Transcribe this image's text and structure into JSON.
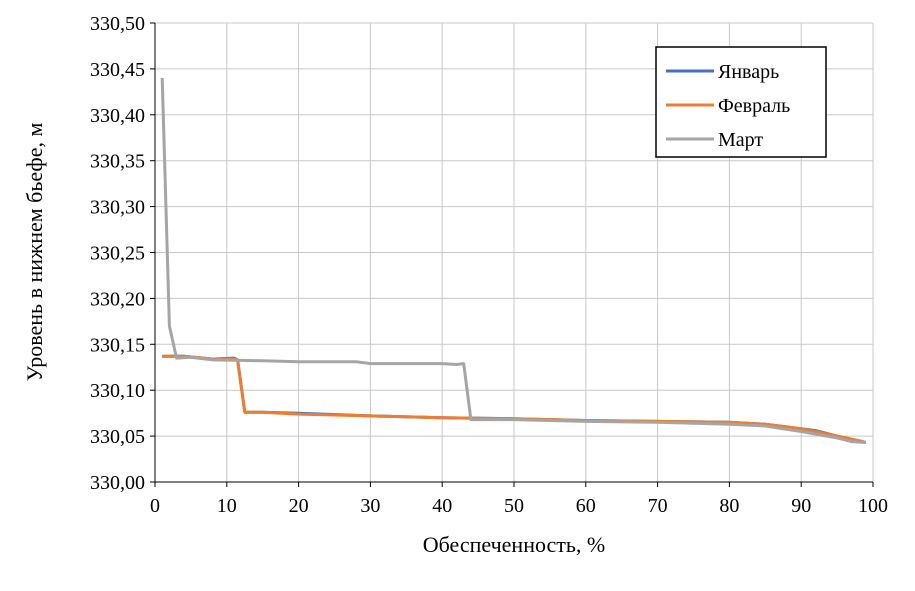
{
  "chart_data": {
    "type": "line",
    "x_label": "Обеспеченность, %",
    "y_label": "Уровень в нижнем бьефе, м",
    "xlim": [
      0,
      100
    ],
    "xticks": [
      0,
      10,
      20,
      30,
      40,
      50,
      60,
      70,
      80,
      90,
      100
    ],
    "ylim": [
      330.0,
      330.5
    ],
    "yticks": [
      {
        "value": 330.0,
        "label": "330,00"
      },
      {
        "value": 330.05,
        "label": "330,05"
      },
      {
        "value": 330.1,
        "label": "330,10"
      },
      {
        "value": 330.15,
        "label": "330,15"
      },
      {
        "value": 330.2,
        "label": "330,20"
      },
      {
        "value": 330.25,
        "label": "330,25"
      },
      {
        "value": 330.3,
        "label": "330,30"
      },
      {
        "value": 330.35,
        "label": "330,35"
      },
      {
        "value": 330.4,
        "label": "330,40"
      },
      {
        "value": 330.45,
        "label": "330,45"
      },
      {
        "value": 330.5,
        "label": "330,50"
      }
    ],
    "grid": true,
    "legend": "top-right",
    "series": [
      {
        "name": "Январь",
        "color": "#4472c4",
        "x": [
          1,
          4,
          8,
          11,
          11.5,
          12.5,
          15,
          20,
          30,
          40,
          50,
          60,
          70,
          80,
          85,
          90,
          92,
          95,
          98,
          99
        ],
        "values": [
          330.137,
          330.137,
          330.134,
          330.135,
          330.133,
          330.076,
          330.076,
          330.075,
          330.072,
          330.07,
          330.069,
          330.067,
          330.066,
          330.065,
          330.063,
          330.058,
          330.056,
          330.05,
          330.045,
          330.043
        ]
      },
      {
        "name": "Февраль",
        "color": "#ed7d31",
        "x": [
          1,
          4,
          8,
          11,
          11.5,
          12.5,
          15,
          20,
          30,
          40,
          50,
          60,
          70,
          80,
          85,
          90,
          92,
          95,
          98,
          99
        ],
        "values": [
          330.137,
          330.137,
          330.134,
          330.134,
          330.133,
          330.076,
          330.076,
          330.074,
          330.072,
          330.07,
          330.069,
          330.067,
          330.066,
          330.065,
          330.063,
          330.058,
          330.055,
          330.05,
          330.045,
          330.043
        ]
      },
      {
        "name": "Март",
        "color": "#a5a5a5",
        "x": [
          1,
          2,
          3,
          5,
          8,
          15,
          20,
          28,
          30,
          40,
          42,
          43,
          44,
          50,
          55,
          60,
          70,
          80,
          85,
          90,
          95,
          97,
          99
        ],
        "values": [
          330.44,
          330.17,
          330.135,
          330.136,
          330.133,
          330.132,
          330.131,
          330.131,
          330.129,
          330.129,
          330.128,
          330.129,
          330.068,
          330.068,
          330.067,
          330.066,
          330.065,
          330.063,
          330.061,
          330.055,
          330.048,
          330.044,
          330.043
        ]
      }
    ]
  }
}
